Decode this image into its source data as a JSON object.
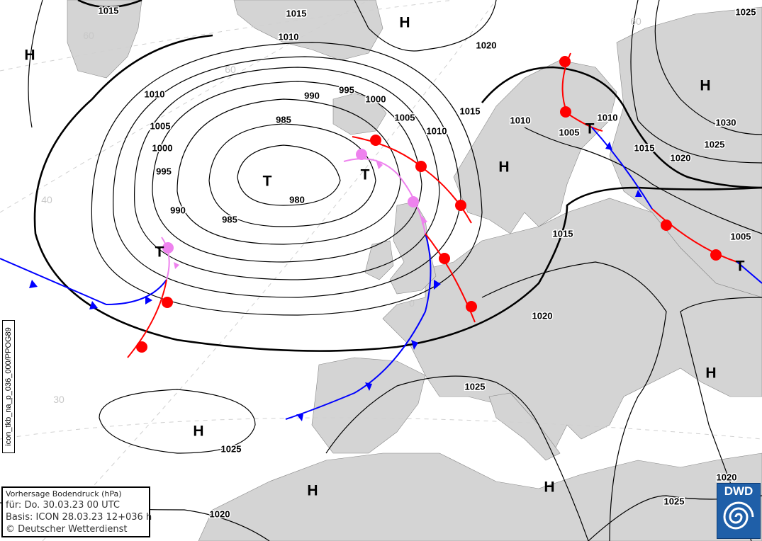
{
  "info_box": {
    "title": "Vorhersage Bodendruck (hPa)",
    "valid": "für:  Do. 30.03.23  00 UTC",
    "basis": "Basis: ICON  28.03.23 12+036 h",
    "copyright": "© Deutscher Wetterdienst"
  },
  "product_id": "icon_tkb_na_p_036_000/PPOG89",
  "logo": {
    "text": "DWD",
    "color": "#1f5fa8"
  },
  "colors": {
    "land": "#d4d4d4",
    "sea": "#ffffff",
    "warm_front": "#ff0000",
    "cold_front": "#0000ff",
    "occlusion": "#ee82ee",
    "isobar": "#000000"
  },
  "latitude_labels": [
    "60",
    "60",
    "40",
    "30",
    "0",
    "60"
  ],
  "pressure_centers": [
    "H",
    "H",
    "H",
    "T",
    "T",
    "H",
    "T",
    "T",
    "T",
    "H",
    "H",
    "H",
    "H"
  ],
  "isobar_labels": [
    "1015",
    "1015",
    "1010",
    "1025",
    "1020",
    "1010",
    "990",
    "995",
    "1000",
    "1005",
    "985",
    "1005",
    "1010",
    "1015",
    "1010",
    "1010",
    "1005",
    "1030",
    "1025",
    "1015",
    "1020",
    "1000",
    "995",
    "980",
    "990",
    "985",
    "1015",
    "1005",
    "1020",
    "1025",
    "1025",
    "1020",
    "1025",
    "1020"
  ]
}
